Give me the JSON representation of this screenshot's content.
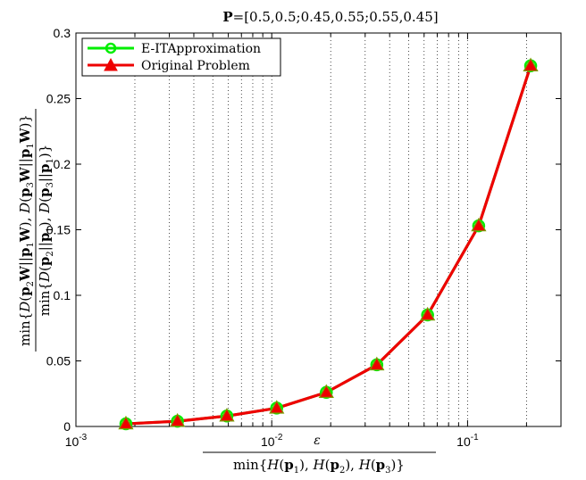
{
  "chart_data": {
    "type": "line",
    "title": "P=[0.5,0.5;0.45,0.55;0.55,0.45]",
    "xlabel": "ε / min{H(p1),H(p2),H(p3)}",
    "ylabel": "min{D(p2W||p1W),D(p3W||p1W)} / min{D(p2||p1),D(p3||p1)}",
    "xscale": "log",
    "xlim": [
      0.001,
      0.3
    ],
    "ylim": [
      0,
      0.3
    ],
    "grid": "x-vertical-dotted",
    "legend_position": "top-left",
    "x_tick_labels": [
      "10^-3",
      "10^-2",
      "10^-1"
    ],
    "y_tick_labels": [
      "0",
      "0.05",
      "0.1",
      "0.15",
      "0.2",
      "0.25",
      "0.3"
    ],
    "x": [
      0.0018,
      0.0033,
      0.0059,
      0.0106,
      0.019,
      0.0344,
      0.0625,
      0.114,
      0.21
    ],
    "series": [
      {
        "name": "E-ITApproximation",
        "color": "#00ee00",
        "marker": "circle",
        "values": [
          0.002,
          0.004,
          0.008,
          0.014,
          0.026,
          0.047,
          0.085,
          0.153,
          0.275
        ]
      },
      {
        "name": "Original Problem",
        "color": "#ee0000",
        "marker": "triangle",
        "values": [
          0.002,
          0.004,
          0.008,
          0.014,
          0.026,
          0.047,
          0.085,
          0.153,
          0.275
        ]
      }
    ]
  }
}
